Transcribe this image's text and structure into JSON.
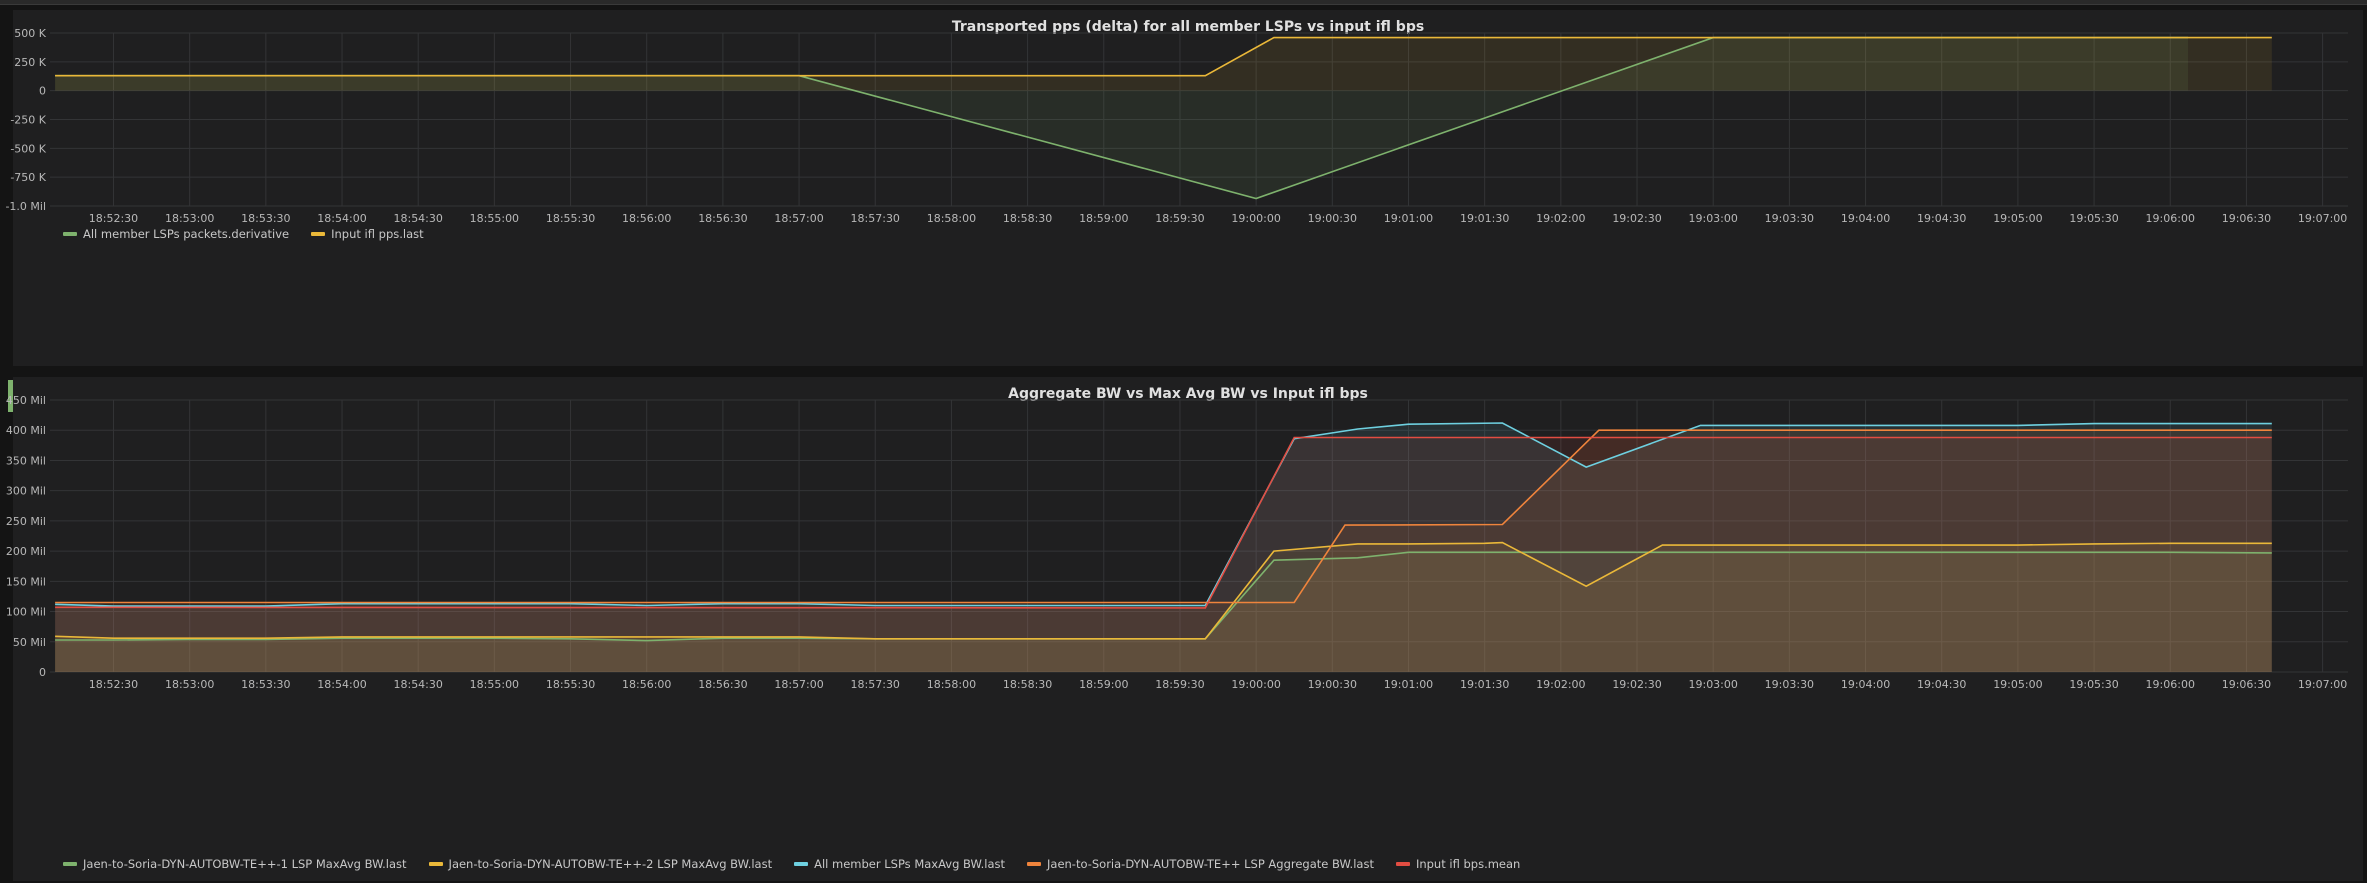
{
  "charts": [
    {
      "title": "Transported pps (delta) for all member LSPs vs input ifl bps",
      "legend": [
        {
          "label": "All member LSPs packets.derivative",
          "color": "#7eb26d"
        },
        {
          "label": "Input ifl pps.last",
          "color": "#eab839"
        }
      ]
    },
    {
      "title": "Aggregate BW vs Max Avg BW vs Input ifl bps",
      "legend": [
        {
          "label": "Jaen-to-Soria-DYN-AUTOBW-TE++-1 LSP MaxAvg BW.last",
          "color": "#7eb26d"
        },
        {
          "label": "Jaen-to-Soria-DYN-AUTOBW-TE++-2 LSP MaxAvg BW.last",
          "color": "#eab839"
        },
        {
          "label": "All member LSPs MaxAvg BW.last",
          "color": "#6ed0e0"
        },
        {
          "label": "Jaen-to-Soria-DYN-AUTOBW-TE++ LSP Aggregate BW.last",
          "color": "#ef843c"
        },
        {
          "label": "Input ifl bps.mean",
          "color": "#e24d42"
        }
      ]
    }
  ],
  "chart_data": [
    {
      "type": "area",
      "title": "Transported pps (delta) for all member LSPs vs input ifl bps",
      "x_tick_labels": [
        "18:52:30",
        "18:53:00",
        "18:53:30",
        "18:54:00",
        "18:54:30",
        "18:55:00",
        "18:55:30",
        "18:56:00",
        "18:56:30",
        "18:57:00",
        "18:57:30",
        "18:58:00",
        "18:58:30",
        "18:59:00",
        "18:59:30",
        "19:00:00",
        "19:00:30",
        "19:01:00",
        "19:01:30",
        "19:02:00",
        "19:02:30",
        "19:03:00",
        "19:03:30",
        "19:04:00",
        "19:04:30",
        "19:05:00",
        "19:05:30",
        "19:06:00",
        "19:06:30",
        "19:07:00"
      ],
      "x_range": [
        "18:52:05",
        "19:07:10"
      ],
      "y_ticks": [
        500000,
        250000,
        0,
        -250000,
        -500000,
        -750000,
        -1000000
      ],
      "y_tick_labels": [
        "500 K",
        "250 K",
        "0",
        "-250 K",
        "-500 K",
        "-750 K",
        "-1.0 Mil"
      ],
      "ylim": [
        -1000000,
        500000
      ],
      "grid": true,
      "legend_position": "bottom-left",
      "series": [
        {
          "name": "All member LSPs packets.derivative",
          "color": "#7eb26d",
          "fill": true,
          "x": [
            "18:52:07",
            "18:57:00",
            "19:00:00",
            "19:03:00",
            "19:06:07"
          ],
          "y": [
            130000,
            130000,
            -935000,
            460000,
            460000
          ]
        },
        {
          "name": "Input ifl pps.last",
          "color": "#eab839",
          "fill": true,
          "x": [
            "18:52:07",
            "18:59:40",
            "19:00:07",
            "19:06:40"
          ],
          "y": [
            130000,
            130000,
            460000,
            460000
          ]
        }
      ]
    },
    {
      "type": "area",
      "title": "Aggregate BW vs Max Avg BW vs Input ifl bps",
      "x_tick_labels": [
        "18:52:30",
        "18:53:00",
        "18:53:30",
        "18:54:00",
        "18:54:30",
        "18:55:00",
        "18:55:30",
        "18:56:00",
        "18:56:30",
        "18:57:00",
        "18:57:30",
        "18:58:00",
        "18:58:30",
        "18:59:00",
        "18:59:30",
        "19:00:00",
        "19:00:30",
        "19:01:00",
        "19:01:30",
        "19:02:00",
        "19:02:30",
        "19:03:00",
        "19:03:30",
        "19:04:00",
        "19:04:30",
        "19:05:00",
        "19:05:30",
        "19:06:00",
        "19:06:30",
        "19:07:00"
      ],
      "x_range": [
        "18:52:05",
        "19:07:10"
      ],
      "y_ticks": [
        450000000,
        400000000,
        350000000,
        300000000,
        250000000,
        200000000,
        150000000,
        100000000,
        50000000,
        0
      ],
      "y_tick_labels": [
        "450 Mil",
        "400 Mil",
        "350 Mil",
        "300 Mil",
        "250 Mil",
        "200 Mil",
        "150 Mil",
        "100 Mil",
        "50 Mil",
        "0"
      ],
      "ylim": [
        0,
        450000000
      ],
      "grid": true,
      "legend_position": "bottom-left",
      "series": [
        {
          "name": "Jaen-to-Soria-DYN-AUTOBW-TE++-1 LSP MaxAvg BW.last",
          "color": "#7eb26d",
          "fill": true,
          "x": [
            "18:52:07",
            "18:52:30",
            "18:53:00",
            "18:53:30",
            "18:54:00",
            "18:54:30",
            "18:55:00",
            "18:55:30",
            "18:56:00",
            "18:56:30",
            "18:57:00",
            "18:57:30",
            "18:58:00",
            "18:58:30",
            "18:59:00",
            "18:59:30",
            "18:59:40",
            "19:00:07",
            "19:00:40",
            "19:01:00",
            "19:01:30",
            "19:02:00",
            "19:02:30",
            "19:03:00",
            "19:03:30",
            "19:04:00",
            "19:04:30",
            "19:05:00",
            "19:05:30",
            "19:06:00",
            "19:06:40"
          ],
          "y": [
            53000000,
            53000000,
            54000000,
            54000000,
            56000000,
            56000000,
            56000000,
            55000000,
            52000000,
            56000000,
            56000000,
            55000000,
            55000000,
            55000000,
            55000000,
            55000000,
            55000000,
            185000000,
            189000000,
            198000000,
            198000000,
            198000000,
            198000000,
            198000000,
            198000000,
            198000000,
            198000000,
            198000000,
            198000000,
            198000000,
            197000000
          ]
        },
        {
          "name": "Jaen-to-Soria-DYN-AUTOBW-TE++-2 LSP MaxAvg BW.last",
          "color": "#eab839",
          "fill": true,
          "x": [
            "18:52:07",
            "18:52:30",
            "18:53:00",
            "18:53:30",
            "18:54:00",
            "18:54:30",
            "18:55:00",
            "18:55:30",
            "18:56:00",
            "18:56:30",
            "18:57:00",
            "18:57:30",
            "18:58:00",
            "18:58:30",
            "18:59:00",
            "18:59:30",
            "18:59:40",
            "19:00:07",
            "19:00:40",
            "19:01:00",
            "19:01:30",
            "19:01:37",
            "19:02:10",
            "19:02:40",
            "19:03:00",
            "19:03:30",
            "19:04:00",
            "19:04:30",
            "19:05:00",
            "19:05:30",
            "19:06:00",
            "19:06:40"
          ],
          "y": [
            59000000,
            56000000,
            56000000,
            56000000,
            58000000,
            58000000,
            58000000,
            58000000,
            58000000,
            58000000,
            58000000,
            55000000,
            55000000,
            55000000,
            55000000,
            55000000,
            55000000,
            200000000,
            212000000,
            212000000,
            213000000,
            214000000,
            142000000,
            210000000,
            210000000,
            210000000,
            210000000,
            210000000,
            210000000,
            212000000,
            213000000,
            213000000
          ]
        },
        {
          "name": "All member LSPs MaxAvg BW.last",
          "color": "#6ed0e0",
          "fill": true,
          "x": [
            "18:52:07",
            "18:52:30",
            "18:53:00",
            "18:53:30",
            "18:54:00",
            "18:54:30",
            "18:55:00",
            "18:55:30",
            "18:56:00",
            "18:56:30",
            "18:57:00",
            "18:57:30",
            "18:58:00",
            "18:58:30",
            "18:59:00",
            "18:59:30",
            "18:59:40",
            "19:00:15",
            "19:00:40",
            "19:01:00",
            "19:01:37",
            "19:02:10",
            "19:02:55",
            "19:03:30",
            "19:04:00",
            "19:04:30",
            "19:05:00",
            "19:05:30",
            "19:06:00",
            "19:06:40"
          ],
          "y": [
            112000000,
            109000000,
            109000000,
            109000000,
            113000000,
            113000000,
            113000000,
            113000000,
            110000000,
            113000000,
            113000000,
            110000000,
            110000000,
            110000000,
            110000000,
            110000000,
            110000000,
            386000000,
            402000000,
            410000000,
            412000000,
            339000000,
            408000000,
            408000000,
            408000000,
            408000000,
            408000000,
            411000000,
            411000000,
            411000000
          ]
        },
        {
          "name": "Jaen-to-Soria-DYN-AUTOBW-TE++ LSP Aggregate BW.last",
          "color": "#ef843c",
          "fill": true,
          "x": [
            "18:52:07",
            "18:59:40",
            "19:00:05",
            "19:00:15",
            "19:00:35",
            "19:01:37",
            "19:02:15",
            "19:02:40",
            "19:06:40"
          ],
          "y": [
            115000000,
            115000000,
            115000000,
            115000000,
            243000000,
            244000000,
            400000000,
            400000000,
            400000000
          ]
        },
        {
          "name": "Input ifl bps.mean",
          "color": "#e24d42",
          "fill": true,
          "x": [
            "18:52:07",
            "18:59:40",
            "19:00:15",
            "19:06:40"
          ],
          "y": [
            107000000,
            106000000,
            388000000,
            388000000
          ]
        }
      ]
    }
  ]
}
